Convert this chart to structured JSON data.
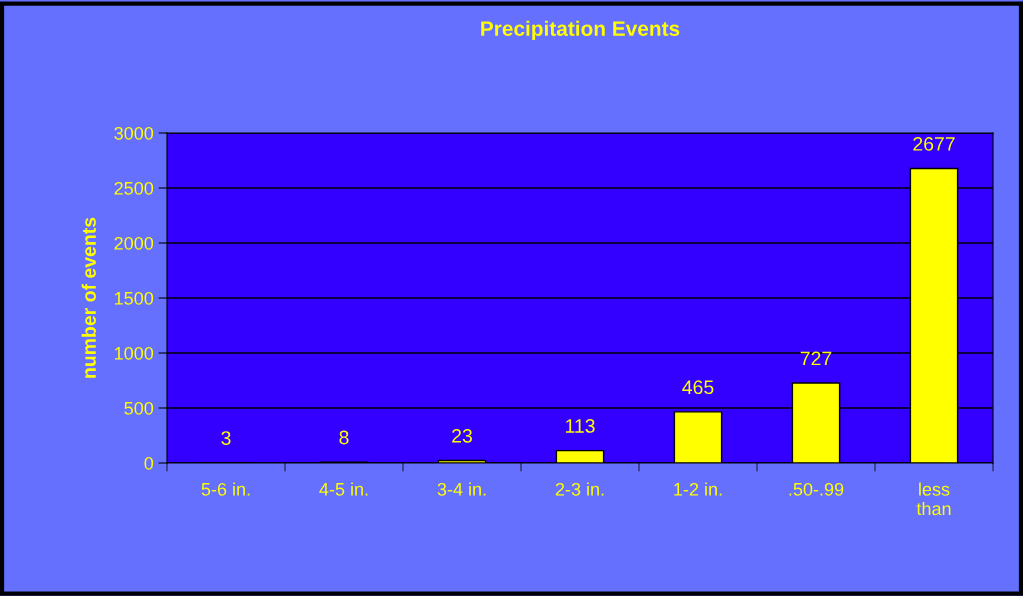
{
  "chart_data": {
    "type": "bar",
    "title": "Precipitation Events",
    "ylabel": "number of events",
    "categories": [
      "5-6 in.",
      "4-5 in.",
      "3-4 in.",
      "2-3 in.",
      "1-2 in.",
      ".50-.99",
      "less\nthan"
    ],
    "values": [
      3,
      8,
      23,
      113,
      465,
      727,
      2677
    ],
    "color": "#ffff00",
    "ylim": [
      0,
      3000
    ],
    "yticks": [
      0,
      500,
      1000,
      1500,
      2000,
      2500,
      3000
    ],
    "grid": "y",
    "data_labels": true,
    "legend": false
  }
}
